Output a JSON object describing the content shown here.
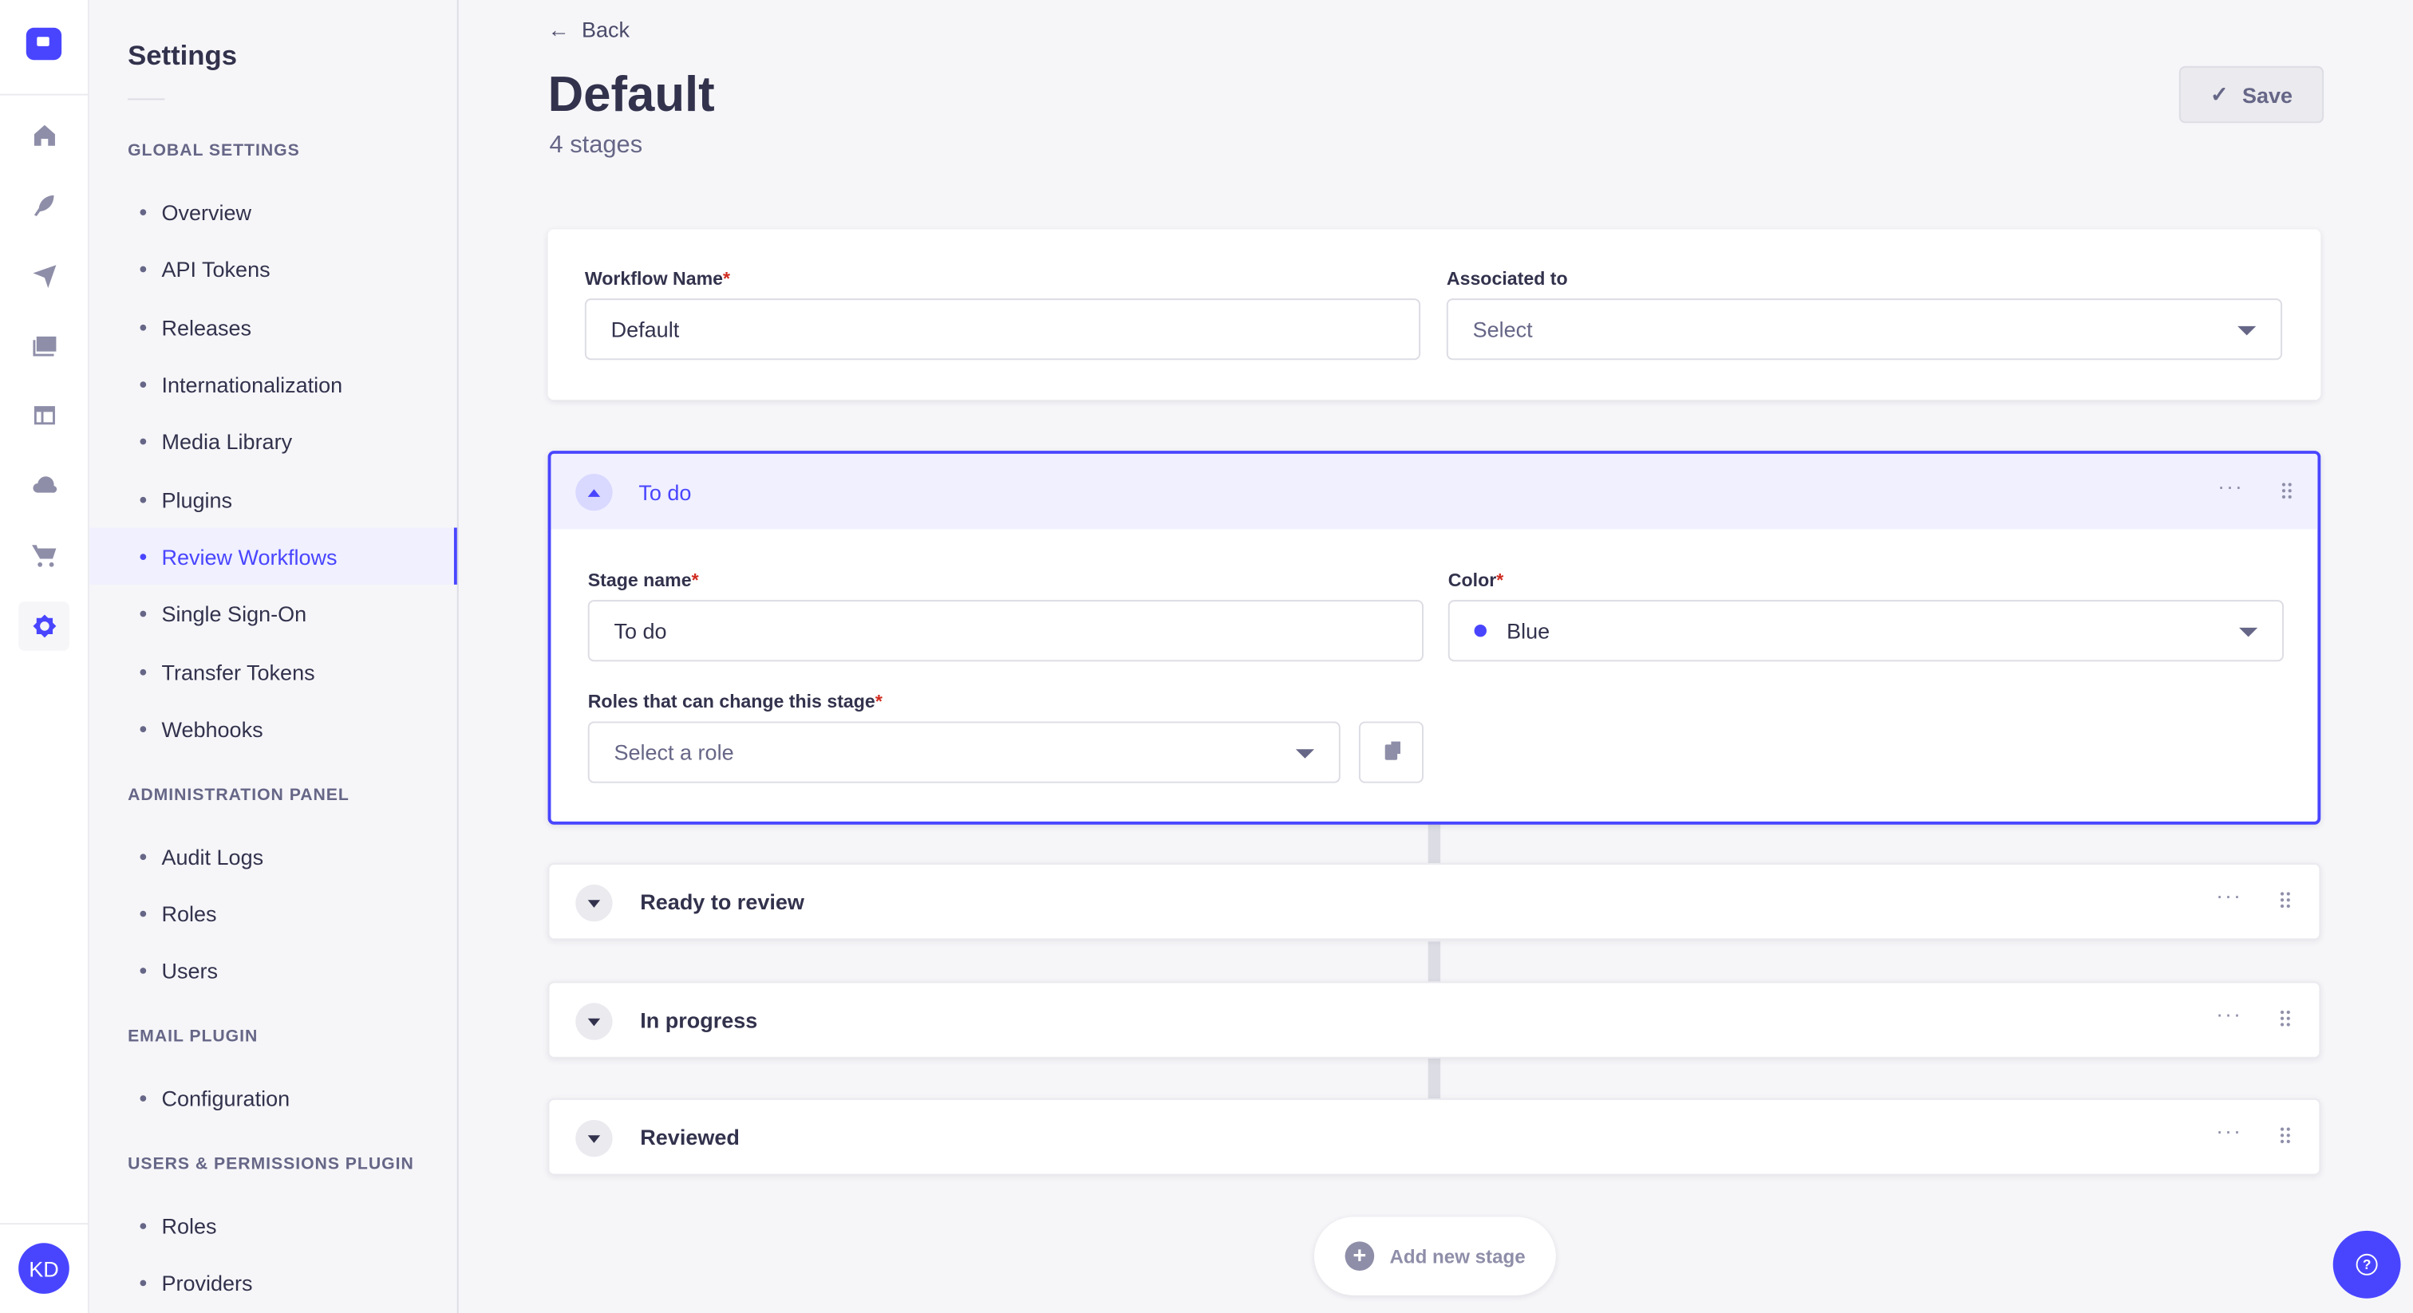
{
  "rail": {
    "icons": [
      "logo-icon",
      "home-icon",
      "feather-icon",
      "paper-plane-icon",
      "media-icon",
      "layout-icon",
      "cloud-icon",
      "cart-icon",
      "gear-icon"
    ],
    "avatar": "KD"
  },
  "settings_nav": {
    "title": "Settings",
    "sections": [
      {
        "heading": "GLOBAL SETTINGS",
        "items": [
          "Overview",
          "API Tokens",
          "Releases",
          "Internationalization",
          "Media Library",
          "Plugins",
          "Review Workflows",
          "Single Sign-On",
          "Transfer Tokens",
          "Webhooks"
        ]
      },
      {
        "heading": "ADMINISTRATION PANEL",
        "items": [
          "Audit Logs",
          "Roles",
          "Users"
        ]
      },
      {
        "heading": "EMAIL PLUGIN",
        "items": [
          "Configuration"
        ]
      },
      {
        "heading": "USERS & PERMISSIONS PLUGIN",
        "items": [
          "Roles",
          "Providers"
        ]
      }
    ],
    "active": "Review Workflows"
  },
  "header": {
    "back": "Back",
    "title": "Default",
    "subtitle": "4 stages",
    "save": "Save"
  },
  "workflow": {
    "name_label": "Workflow Name",
    "name_value": "Default",
    "assoc_label": "Associated to",
    "assoc_placeholder": "Select",
    "required_mark": "*"
  },
  "stages": [
    {
      "name": "To do",
      "expanded": true,
      "stage_name_label": "Stage name",
      "stage_name_value": "To do",
      "color_label": "Color",
      "color_value": "Blue",
      "color_hex": "#4945ff",
      "roles_label": "Roles that can change this stage",
      "roles_placeholder": "Select a role"
    },
    {
      "name": "Ready to review",
      "expanded": false
    },
    {
      "name": "In progress",
      "expanded": false
    },
    {
      "name": "Reviewed",
      "expanded": false
    }
  ],
  "more_label": "···",
  "add_stage": "Add new stage",
  "colors": {
    "accent": "#4945ff",
    "required": "#d02b20"
  }
}
